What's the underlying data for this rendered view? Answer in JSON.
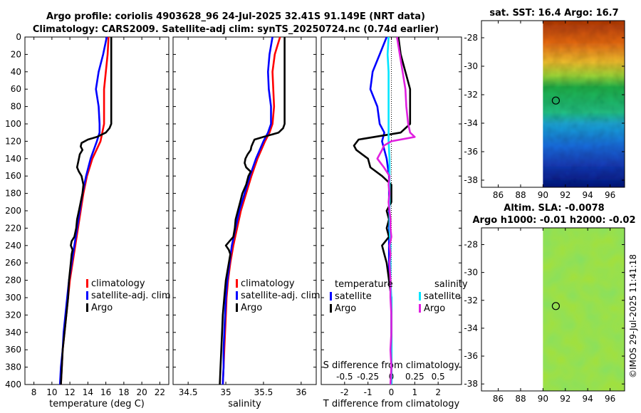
{
  "title": {
    "line1": "Argo profile: coriolis 4903628_96 24-Jul-2025 32.41S 91.149E (NRT data)",
    "line2": "Climatology: CARS2009. Satellite-adj clim: synTS_20250724.nc (0.74d earlier)"
  },
  "watermark": "©IMOS 29-Jul-2025 11:41:18",
  "colors": {
    "climatology": "#ff0000",
    "satellite": "#0000ff",
    "argo": "#000000",
    "sal_satellite": "#00e5ff",
    "sal_argo": "#e020e0"
  },
  "chart_data": [
    {
      "type": "line",
      "xlabel": "temperature (deg C)",
      "xlim": [
        7,
        23
      ],
      "xticks": [
        "8",
        "10",
        "12",
        "14",
        "16",
        "18",
        "20",
        "22"
      ],
      "ylim": [
        0,
        400
      ],
      "yticks": [
        "0",
        "20",
        "40",
        "60",
        "80",
        "100",
        "120",
        "140",
        "160",
        "180",
        "200",
        "220",
        "240",
        "260",
        "280",
        "300",
        "320",
        "340",
        "360",
        "380",
        "400"
      ],
      "legend": {
        "placement": "lower-right",
        "entries": [
          "climatology",
          "satellite-adj. clim",
          "Argo"
        ]
      },
      "series": [
        {
          "name": "climatology",
          "depth": [
            0,
            20,
            40,
            60,
            80,
            100,
            110,
            120,
            140,
            160,
            180,
            200,
            220,
            240,
            260,
            280,
            300,
            320,
            340,
            360,
            380,
            400
          ],
          "values": [
            16.3,
            16.2,
            16.0,
            15.8,
            15.8,
            15.8,
            15.6,
            15.4,
            14.5,
            13.9,
            13.5,
            13.2,
            12.9,
            12.6,
            12.3,
            12.0,
            11.8,
            11.6,
            11.4,
            11.2,
            11.1,
            11.0
          ]
        },
        {
          "name": "satellite-adj. clim",
          "depth": [
            0,
            20,
            40,
            60,
            80,
            100,
            110,
            120,
            140,
            160,
            180,
            200,
            220,
            240,
            260,
            280,
            300,
            320,
            340,
            360,
            380,
            400
          ],
          "values": [
            16.1,
            15.7,
            15.2,
            14.9,
            15.2,
            15.3,
            15.3,
            15.0,
            14.3,
            13.8,
            13.4,
            13.1,
            12.8,
            12.5,
            12.2,
            11.9,
            11.7,
            11.5,
            11.3,
            11.2,
            11.0,
            10.9
          ]
        },
        {
          "name": "Argo",
          "depth": [
            0,
            20,
            40,
            60,
            80,
            100,
            105,
            110,
            115,
            118,
            122,
            126,
            130,
            135,
            140,
            145,
            150,
            155,
            160,
            170,
            180,
            190,
            200,
            210,
            220,
            230,
            235,
            240,
            245,
            250,
            260,
            280,
            300,
            320,
            340,
            360,
            380,
            400
          ],
          "values": [
            16.6,
            16.6,
            16.6,
            16.6,
            16.6,
            16.6,
            16.4,
            16.0,
            15.0,
            14.0,
            13.3,
            13.2,
            13.4,
            13.1,
            13.0,
            12.9,
            12.8,
            13.0,
            13.3,
            13.5,
            13.4,
            13.2,
            13.0,
            12.8,
            12.7,
            12.5,
            12.2,
            12.1,
            12.3,
            12.2,
            12.1,
            11.9,
            11.8,
            11.6,
            11.4,
            11.2,
            11.1,
            11.0
          ]
        }
      ]
    },
    {
      "type": "line",
      "xlabel": "salinity",
      "xlim": [
        34.3,
        36.2
      ],
      "xticks": [
        "34.5",
        "35",
        "35.5",
        "36"
      ],
      "ylim": [
        0,
        400
      ],
      "legend": {
        "placement": "lower-right",
        "entries": [
          "climatology",
          "satellite-adj. clim",
          "Argo"
        ]
      },
      "series": [
        {
          "name": "climatology",
          "depth": [
            0,
            20,
            40,
            60,
            80,
            100,
            110,
            120,
            140,
            160,
            180,
            200,
            220,
            240,
            260,
            280,
            300,
            320,
            340,
            360,
            380,
            400
          ],
          "values": [
            35.72,
            35.65,
            35.62,
            35.63,
            35.64,
            35.62,
            35.58,
            35.52,
            35.42,
            35.34,
            35.27,
            35.2,
            35.15,
            35.1,
            35.06,
            35.03,
            35.01,
            35.0,
            34.99,
            34.98,
            34.97,
            34.96
          ]
        },
        {
          "name": "satellite-adj. clim",
          "depth": [
            0,
            20,
            40,
            60,
            80,
            100,
            110,
            120,
            140,
            160,
            180,
            200,
            220,
            240,
            260,
            280,
            300,
            320,
            340,
            360,
            380,
            400
          ],
          "values": [
            35.62,
            35.58,
            35.56,
            35.57,
            35.6,
            35.6,
            35.56,
            35.5,
            35.4,
            35.32,
            35.25,
            35.18,
            35.13,
            35.08,
            35.05,
            35.02,
            35.0,
            34.99,
            34.98,
            34.97,
            34.97,
            34.96
          ]
        },
        {
          "name": "Argo",
          "depth": [
            0,
            20,
            40,
            60,
            80,
            100,
            105,
            110,
            115,
            118,
            122,
            126,
            130,
            135,
            140,
            145,
            150,
            155,
            160,
            170,
            180,
            190,
            200,
            210,
            220,
            230,
            235,
            240,
            245,
            250,
            260,
            280,
            300,
            320,
            340,
            360,
            380,
            400
          ],
          "values": [
            35.78,
            35.78,
            35.78,
            35.78,
            35.78,
            35.78,
            35.76,
            35.7,
            35.5,
            35.38,
            35.36,
            35.34,
            35.33,
            35.29,
            35.26,
            35.25,
            35.27,
            35.33,
            35.3,
            35.27,
            35.22,
            35.19,
            35.16,
            35.13,
            35.12,
            35.1,
            35.05,
            35.0,
            35.04,
            35.06,
            35.04,
            35.0,
            34.98,
            34.96,
            34.95,
            34.94,
            34.93,
            34.92
          ]
        }
      ]
    },
    {
      "type": "line",
      "xlabel": "T difference from climatology",
      "xlim": [
        -3,
        3
      ],
      "xticks": [
        "-2",
        "-1",
        "0",
        "1",
        "2"
      ],
      "top_label": "S difference from climatology",
      "top_ticks": [
        "-0.5",
        "-0.25",
        "0",
        "0.25",
        "0.5"
      ],
      "s_lim": [
        -0.75,
        0.75
      ],
      "ylim": [
        0,
        400
      ],
      "legend": {
        "placement": "lower-right",
        "temperature_header": "temperature",
        "salinity_header": "salinity",
        "temperature_entries": [
          "satellite",
          "Argo"
        ],
        "salinity_entries": [
          "satellite",
          "Argo"
        ]
      },
      "series": [
        {
          "name": "temperature satellite",
          "depth": [
            0,
            20,
            40,
            60,
            80,
            100,
            110,
            120,
            140,
            160,
            180,
            200,
            220,
            240,
            260,
            280,
            300,
            320,
            340,
            360,
            380,
            400
          ],
          "values": [
            -0.2,
            -0.5,
            -0.8,
            -0.9,
            -0.6,
            -0.5,
            -0.3,
            -0.4,
            -0.2,
            -0.1,
            -0.1,
            -0.1,
            -0.1,
            -0.1,
            -0.1,
            -0.1,
            0.0,
            0.0,
            0.0,
            0.0,
            0.0,
            0.0
          ]
        },
        {
          "name": "temperature Argo",
          "depth": [
            0,
            20,
            40,
            60,
            80,
            100,
            110,
            118,
            125,
            130,
            140,
            150,
            160,
            170,
            180,
            190,
            200,
            210,
            220,
            230,
            240,
            250,
            260,
            280,
            300,
            320,
            340,
            360,
            380,
            400
          ],
          "values": [
            0.3,
            0.4,
            0.6,
            0.8,
            0.8,
            0.8,
            0.4,
            -1.4,
            -1.6,
            -1.5,
            -1.0,
            -0.9,
            -0.4,
            0.0,
            0.0,
            0.0,
            -0.2,
            -0.1,
            -0.2,
            -0.1,
            -0.4,
            -0.3,
            -0.2,
            -0.1,
            0.0,
            0.0,
            0.0,
            0.0,
            0.0,
            0.0
          ]
        },
        {
          "name": "salinity satellite",
          "depth": [
            0,
            20,
            40,
            60,
            80,
            100,
            120,
            140,
            160,
            180,
            200,
            220,
            240,
            260,
            280,
            300,
            320,
            340,
            360,
            380,
            400
          ],
          "values": [
            -0.03,
            -0.04,
            -0.03,
            -0.03,
            -0.03,
            -0.03,
            -0.03,
            -0.02,
            -0.02,
            -0.02,
            -0.02,
            -0.02,
            -0.01,
            -0.01,
            -0.01,
            0.0,
            0.0,
            0.0,
            0.0,
            0.0,
            0.0
          ]
        },
        {
          "name": "salinity Argo",
          "depth": [
            0,
            20,
            40,
            60,
            80,
            100,
            110,
            115,
            120,
            125,
            130,
            140,
            150,
            160,
            170,
            180,
            190,
            200,
            210,
            220,
            230,
            240,
            250,
            260,
            280,
            300,
            320,
            340,
            360,
            380,
            400
          ],
          "values": [
            0.06,
            0.09,
            0.12,
            0.15,
            0.16,
            0.18,
            0.2,
            0.25,
            0.0,
            -0.08,
            -0.1,
            -0.15,
            -0.08,
            -0.02,
            -0.03,
            -0.02,
            -0.03,
            -0.02,
            -0.01,
            -0.01,
            0.0,
            -0.02,
            -0.01,
            -0.02,
            -0.01,
            -0.01,
            0.0,
            0.0,
            -0.01,
            0.0,
            -0.01
          ]
        }
      ]
    },
    {
      "type": "heatmap",
      "title": "sat. SST: 16.4 Argo: 16.7",
      "xticks": [
        "86",
        "88",
        "90",
        "92",
        "94",
        "96"
      ],
      "yticks": [
        "-28",
        "-30",
        "-32",
        "-34",
        "-36",
        "-38"
      ],
      "xlim": [
        84.5,
        97.3
      ],
      "ylim": [
        -38.5,
        -26.8
      ],
      "data_xlim": [
        90,
        97.3
      ],
      "marker": {
        "lon": 91.149,
        "lat": -32.41
      },
      "colormap": "jet"
    },
    {
      "type": "heatmap",
      "title": "Altim. SLA: -0.0078",
      "subtitle": "Argo h1000: -0.01 h2000: -0.02",
      "xticks": [
        "86",
        "88",
        "90",
        "92",
        "94",
        "96"
      ],
      "yticks": [
        "-28",
        "-30",
        "-32",
        "-34",
        "-36",
        "-38"
      ],
      "xlim": [
        84.5,
        97.3
      ],
      "ylim": [
        -38.5,
        -26.8
      ],
      "data_xlim": [
        90,
        97.3
      ],
      "marker": {
        "lon": 91.149,
        "lat": -32.41
      },
      "colormap": "jet"
    }
  ]
}
